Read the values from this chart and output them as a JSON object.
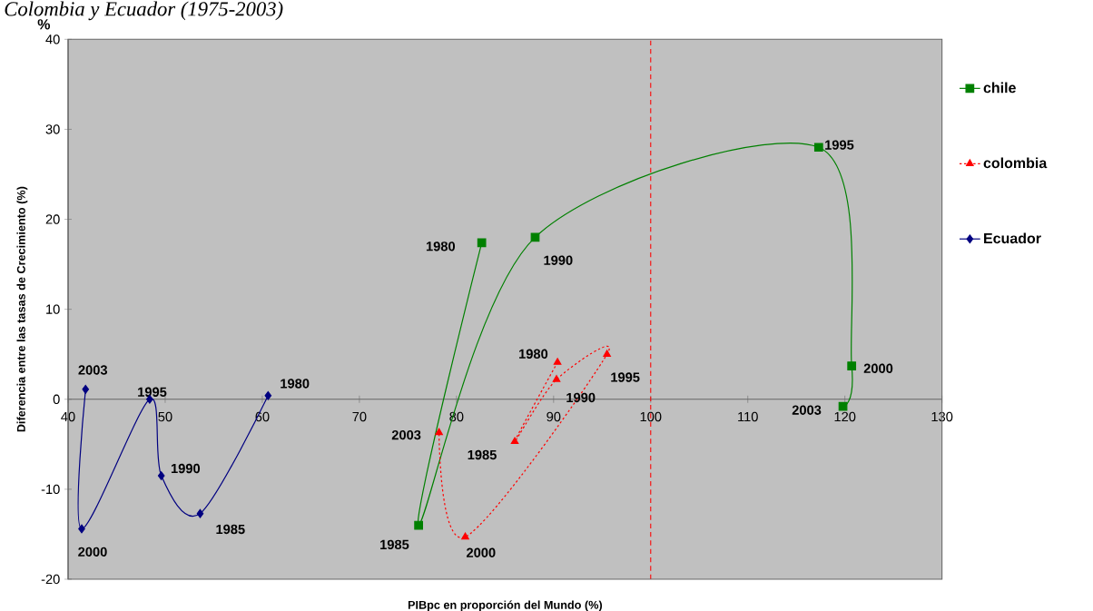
{
  "chart_data": {
    "type": "line",
    "title": "Colombia y Ecuador (1975-2003)",
    "xlabel": "PIBpc en proporción del Mundo (%)",
    "ylabel": "Diferencia entre las tasas de Crecimiento  (%)",
    "xlim": [
      40,
      130
    ],
    "ylim": [
      -20,
      40
    ],
    "xticks": [
      40,
      50,
      60,
      70,
      80,
      90,
      100,
      110,
      120,
      130
    ],
    "yticks": [
      -20,
      -10,
      0,
      10,
      20,
      30,
      40
    ],
    "grid": false,
    "legend": "right",
    "series": [
      {
        "name": "chile",
        "color": "#008000",
        "marker": "square",
        "line_style": "solid",
        "x": [
          82.6,
          76.1,
          88.1,
          117.3,
          120.7,
          119.8
        ],
        "values": [
          17.4,
          -14.0,
          18.0,
          28.0,
          3.7,
          -0.8
        ]
      },
      {
        "name": "colombia",
        "color": "#ff0000",
        "marker": "triangle",
        "line_style": "dotted",
        "x": [
          90.4,
          86.0,
          90.3,
          95.5,
          80.9,
          78.2
        ],
        "values": [
          4.1,
          -4.7,
          2.2,
          5.0,
          -15.3,
          -3.7
        ]
      },
      {
        "name": "Ecuador",
        "color": "#000080",
        "marker": "diamond",
        "line_style": "solid",
        "x": [
          60.6,
          53.6,
          49.6,
          48.4,
          41.4,
          41.8
        ],
        "values": [
          0.4,
          -12.7,
          -8.5,
          0.0,
          -14.4,
          1.1
        ]
      }
    ],
    "ref_lines": [
      {
        "axis": "x",
        "value": 100,
        "color": "#ff0000",
        "line_style": "dashed"
      }
    ],
    "annotations": [
      {
        "text": "1980",
        "x": 82.6,
        "y": 17.4
      },
      {
        "text": "1985",
        "x": 76.1,
        "y": -14.0
      },
      {
        "text": "1990",
        "x": 88.1,
        "y": 18.0
      },
      {
        "text": "1995",
        "x": 117.3,
        "y": 28.0
      },
      {
        "text": "2000",
        "x": 120.7,
        "y": 3.7
      },
      {
        "text": "2003",
        "x": 119.8,
        "y": -0.8
      },
      {
        "text": "1980",
        "x": 90.4,
        "y": 4.1
      },
      {
        "text": "1985",
        "x": 86.0,
        "y": -4.7
      },
      {
        "text": "1990",
        "x": 90.3,
        "y": 2.2
      },
      {
        "text": "1995",
        "x": 95.5,
        "y": 5.0
      },
      {
        "text": "2000",
        "x": 80.9,
        "y": -15.3
      },
      {
        "text": "2003",
        "x": 78.2,
        "y": -3.7
      },
      {
        "text": "1980",
        "x": 60.6,
        "y": 0.4
      },
      {
        "text": "1985",
        "x": 53.6,
        "y": -12.7
      },
      {
        "text": "1990",
        "x": 49.6,
        "y": -8.5
      },
      {
        "text": "1995",
        "x": 48.4,
        "y": 0.0
      },
      {
        "text": "2000",
        "x": 41.4,
        "y": -14.4
      },
      {
        "text": "2003",
        "x": 41.8,
        "y": 1.1
      },
      "%"
    ]
  }
}
